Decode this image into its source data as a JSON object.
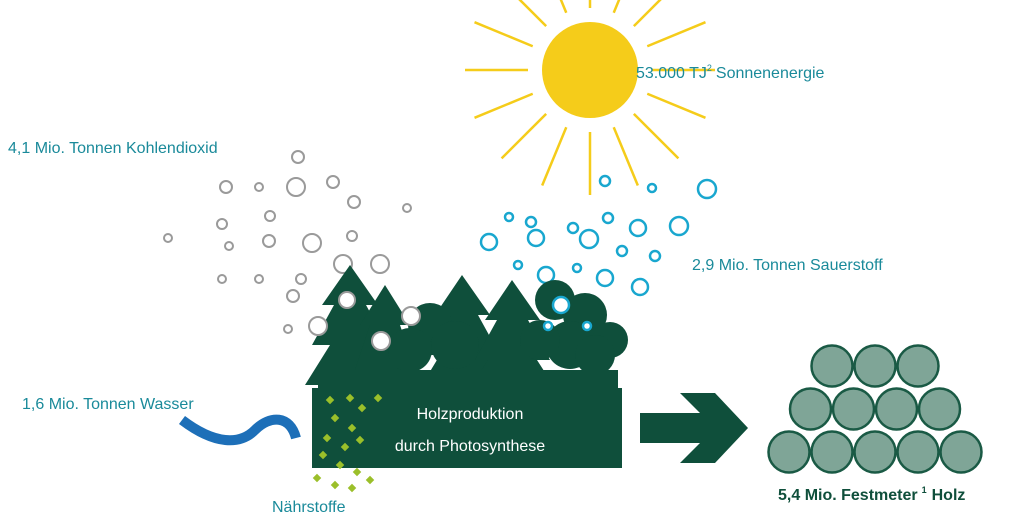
{
  "sun": {
    "text": "53.000 TJ",
    "sup": "2",
    "suffix": "Sonnenenergie"
  },
  "co2": {
    "text": "4,1 Mio. Tonnen Kohlendioxid"
  },
  "o2": {
    "text": "2,9 Mio. Tonnen Sauerstoff"
  },
  "water": {
    "text": "1,6 Mio. Tonnen Wasser"
  },
  "process": {
    "line1": "Holzproduktion",
    "line2": "durch Photosynthese"
  },
  "nutrients": {
    "text": "Nährstoffe"
  },
  "wood": {
    "text": "5,4 Mio. Festmeter",
    "sup": "1",
    "suffix": "Holz"
  }
}
